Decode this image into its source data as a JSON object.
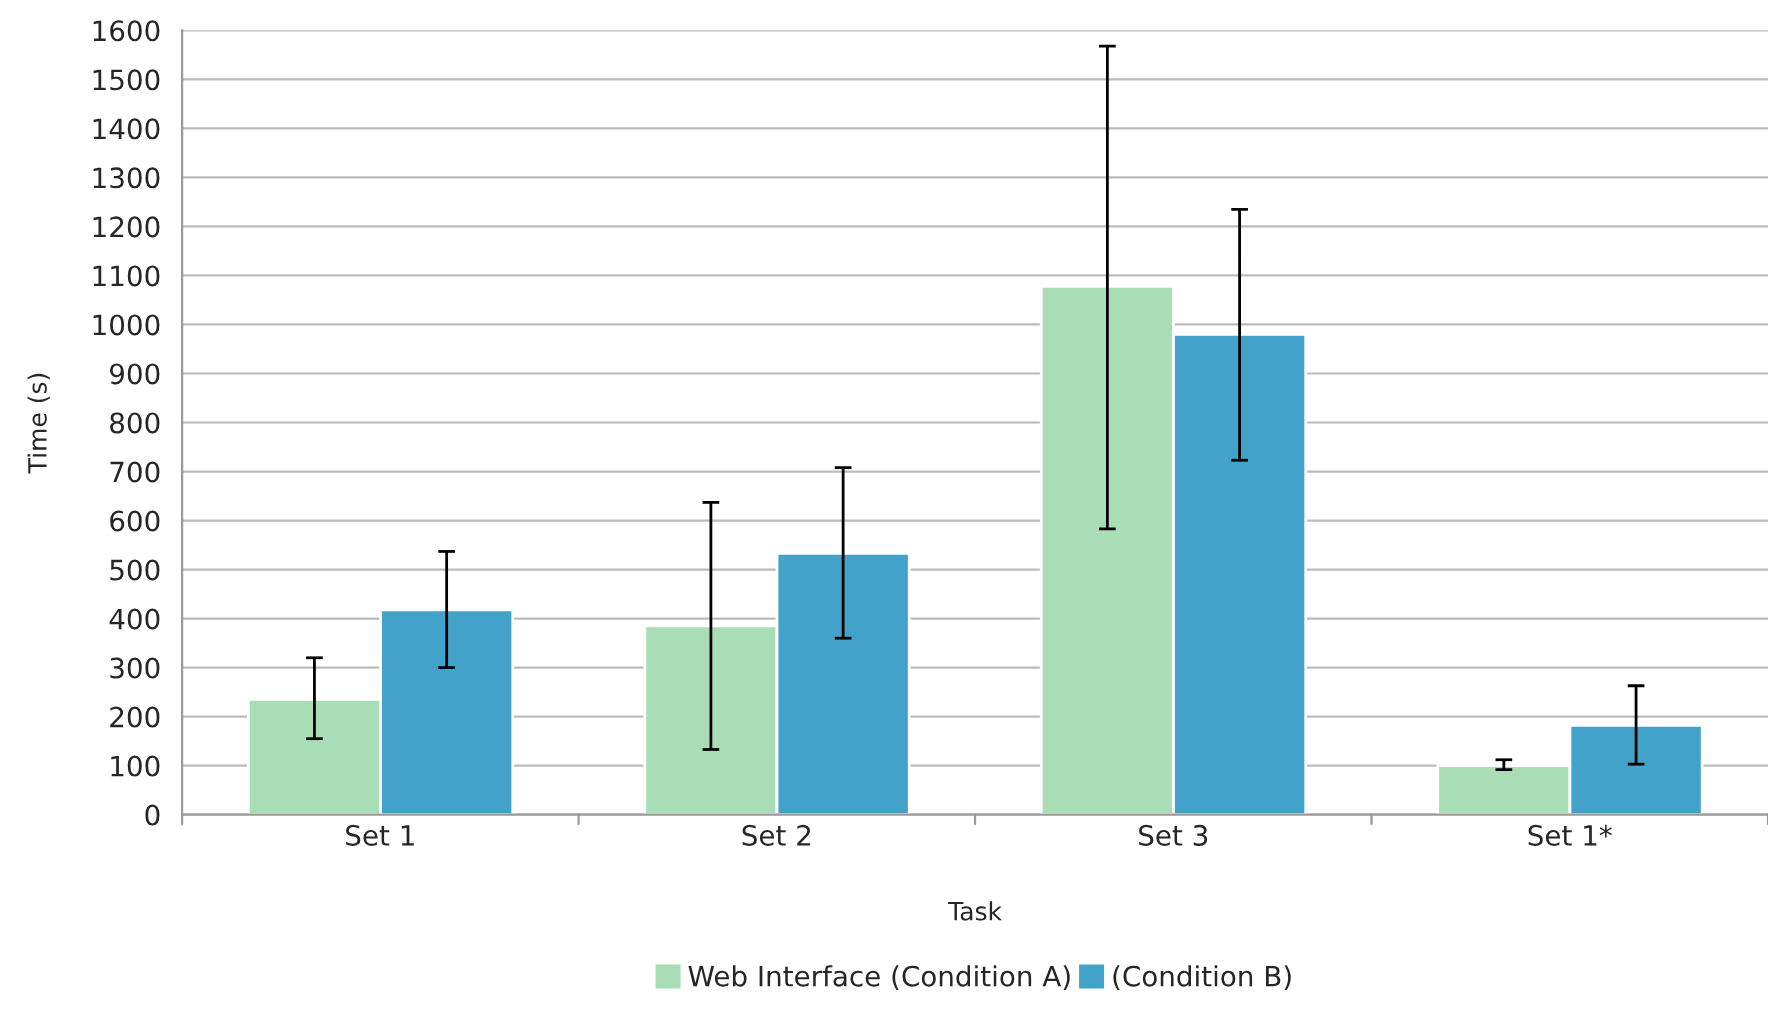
{
  "chart_data": {
    "type": "bar",
    "xlabel": "Task",
    "ylabel": "Time (s)",
    "categories": [
      "Set 1",
      "Set 2",
      "Set 3",
      "Set 1*"
    ],
    "series": [
      {
        "name": "Web Interface (Condition A)",
        "color": "#a8ddb5",
        "values": [
          235,
          385,
          1078,
          100
        ],
        "errors": [
          [
            155,
            320
          ],
          [
            133,
            637
          ],
          [
            583,
            1568
          ],
          [
            92,
            112
          ]
        ]
      },
      {
        "name": "(Condition B)",
        "color": "#43a2ca",
        "values": [
          418,
          533,
          980,
          182
        ],
        "errors": [
          [
            300,
            537
          ],
          [
            360,
            708
          ],
          [
            723,
            1235
          ],
          [
            103,
            263
          ]
        ]
      }
    ],
    "ylim": [
      0,
      1600
    ],
    "yticks": [
      0,
      100,
      200,
      300,
      400,
      500,
      600,
      700,
      800,
      900,
      1000,
      1100,
      1200,
      1300,
      1400,
      1500,
      1600
    ],
    "grid": "y",
    "legend": "bottom"
  }
}
